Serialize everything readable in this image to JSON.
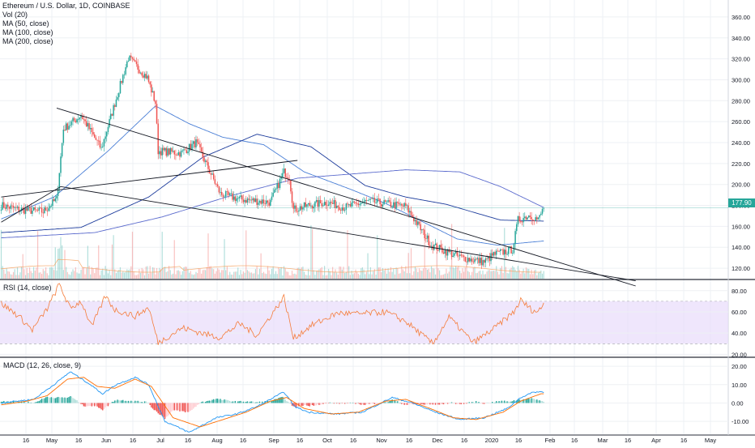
{
  "header": {
    "title": "Ethereum / U.S. Dollar, 1D, COINBASE",
    "indicators": [
      "Vol (20)",
      "MA (50, close)",
      "MA (100, close)",
      "MA (200, close)"
    ]
  },
  "panels": {
    "rsi_label": "RSI (14, close)",
    "macd_label": "MACD (12, 26, close, 9)"
  },
  "last_price_label": "177.90",
  "colors": {
    "up": "#26a69a",
    "down": "#ef5350",
    "ma50": "#4a7fd6",
    "ma100": "#1d3c9c",
    "ma200": "#5a6acd",
    "rsi_line": "#f57c3a",
    "rsi_band": "#e8dcfb",
    "macd_line": "#2196f3",
    "signal_line": "#ff6d00",
    "trendline": "#131722"
  },
  "chart_data": [
    {
      "type": "candlestick",
      "title": "Ethereum / U.S. Dollar, 1D, COINBASE",
      "x_axis_labels": [
        "16",
        "May",
        "16",
        "Jun",
        "16",
        "Jul",
        "16",
        "Aug",
        "16",
        "Sep",
        "16",
        "Oct",
        "16",
        "Nov",
        "16",
        "Dec",
        "16",
        "2020",
        "16",
        "Feb",
        "16",
        "Mar",
        "16",
        "Apr",
        "16",
        "May"
      ],
      "y_ticks": [
        "360.00",
        "340.00",
        "320.00",
        "300.00",
        "280.00",
        "260.00",
        "240.00",
        "220.00",
        "200.00",
        "180.00",
        "160.00",
        "140.00",
        "120.00"
      ],
      "ylim": [
        110,
        370
      ],
      "last_price": 177.9,
      "close_anchors": [
        [
          1,
          180
        ],
        [
          14,
          176
        ],
        [
          32,
          174
        ],
        [
          42,
          186
        ],
        [
          47,
          253
        ],
        [
          60,
          266
        ],
        [
          75,
          234
        ],
        [
          95,
          321
        ],
        [
          109,
          302
        ],
        [
          115,
          278
        ],
        [
          117,
          232
        ],
        [
          134,
          230
        ],
        [
          145,
          240
        ],
        [
          163,
          191
        ],
        [
          177,
          186
        ],
        [
          200,
          183
        ],
        [
          210,
          212
        ],
        [
          214,
          207
        ],
        [
          217,
          176
        ],
        [
          228,
          180
        ],
        [
          242,
          183
        ],
        [
          255,
          178
        ],
        [
          272,
          184
        ],
        [
          300,
          179
        ],
        [
          319,
          142
        ],
        [
          339,
          131
        ],
        [
          350,
          128
        ],
        [
          358,
          126
        ],
        [
          365,
          133
        ],
        [
          379,
          138
        ],
        [
          383,
          166
        ],
        [
          392,
          171
        ],
        [
          398,
          166
        ],
        [
          402,
          178
        ]
      ],
      "moving_averages": [
        {
          "name": "MA (50, close)",
          "points": [
            [
              1,
              167
            ],
            [
              40,
              188
            ],
            [
              80,
              232
            ],
            [
              115,
              275
            ],
            [
              140,
              258
            ],
            [
              165,
              245
            ],
            [
              195,
              238
            ],
            [
              225,
              212
            ],
            [
              260,
              195
            ],
            [
              285,
              182
            ],
            [
              310,
              166
            ],
            [
              338,
              148
            ],
            [
              368,
              142
            ],
            [
              402,
              146
            ]
          ]
        },
        {
          "name": "MA (100, close)",
          "points": [
            [
              1,
              154
            ],
            [
              60,
              159
            ],
            [
              110,
              188
            ],
            [
              150,
              226
            ],
            [
              190,
              248
            ],
            [
              230,
              236
            ],
            [
              270,
              199
            ],
            [
              300,
              188
            ],
            [
              330,
              181
            ],
            [
              370,
              166
            ],
            [
              402,
              165
            ]
          ]
        },
        {
          "name": "MA (200, close)",
          "points": [
            [
              1,
              149
            ],
            [
              70,
              154
            ],
            [
              120,
              169
            ],
            [
              170,
              189
            ],
            [
              220,
              206
            ],
            [
              260,
              210
            ],
            [
              300,
              214
            ],
            [
              340,
              212
            ],
            [
              370,
              198
            ],
            [
              402,
              178
            ]
          ]
        }
      ],
      "trendlines": [
        {
          "points": [
            [
              1,
              188
            ],
            [
              220,
              223
            ]
          ]
        },
        {
          "points": [
            [
              42,
              273
            ],
            [
              470,
              103
            ]
          ]
        },
        {
          "points": [
            [
              1,
              164
            ],
            [
              45,
              198
            ],
            [
              470,
              108
            ]
          ]
        }
      ]
    },
    {
      "type": "line",
      "title": "RSI (14, close)",
      "y_ticks": [
        "80.00",
        "60.00",
        "40.00",
        "20.00"
      ],
      "ylim": [
        18,
        89
      ],
      "bands": [
        30,
        70
      ],
      "anchors": [
        [
          1,
          68
        ],
        [
          14,
          56
        ],
        [
          24,
          43
        ],
        [
          35,
          63
        ],
        [
          44,
          86
        ],
        [
          52,
          63
        ],
        [
          60,
          70
        ],
        [
          68,
          46
        ],
        [
          78,
          75
        ],
        [
          85,
          62
        ],
        [
          100,
          56
        ],
        [
          110,
          64
        ],
        [
          117,
          31
        ],
        [
          135,
          45
        ],
        [
          152,
          39
        ],
        [
          163,
          36
        ],
        [
          177,
          49
        ],
        [
          190,
          38
        ],
        [
          210,
          74
        ],
        [
          217,
          35
        ],
        [
          230,
          47
        ],
        [
          250,
          59
        ],
        [
          265,
          58
        ],
        [
          285,
          60
        ],
        [
          300,
          51
        ],
        [
          320,
          30
        ],
        [
          332,
          55
        ],
        [
          350,
          31
        ],
        [
          365,
          44
        ],
        [
          380,
          60
        ],
        [
          385,
          71
        ],
        [
          393,
          62
        ],
        [
          398,
          60
        ],
        [
          402,
          68
        ]
      ]
    },
    {
      "type": "line",
      "title": "MACD (12, 26, close, 9)",
      "y_ticks": [
        "20.00",
        "10.00",
        "0.00",
        "-10.00"
      ],
      "ylim": [
        -17,
        24
      ],
      "macd_anchors": [
        [
          1,
          0
        ],
        [
          12,
          1
        ],
        [
          25,
          2
        ],
        [
          40,
          10
        ],
        [
          52,
          17
        ],
        [
          65,
          11
        ],
        [
          76,
          5
        ],
        [
          86,
          10
        ],
        [
          100,
          14
        ],
        [
          110,
          10
        ],
        [
          122,
          -10
        ],
        [
          140,
          -16
        ],
        [
          160,
          -8
        ],
        [
          175,
          -6
        ],
        [
          190,
          -2
        ],
        [
          210,
          6
        ],
        [
          218,
          -2
        ],
        [
          228,
          -5
        ],
        [
          248,
          -6
        ],
        [
          268,
          -5
        ],
        [
          290,
          3
        ],
        [
          305,
          0
        ],
        [
          322,
          -5
        ],
        [
          340,
          -9
        ],
        [
          358,
          -8
        ],
        [
          375,
          -3
        ],
        [
          385,
          3
        ],
        [
          395,
          6
        ],
        [
          402,
          6
        ]
      ],
      "signal_anchors": [
        [
          1,
          -1
        ],
        [
          20,
          1
        ],
        [
          35,
          4
        ],
        [
          50,
          13
        ],
        [
          62,
          14
        ],
        [
          72,
          9
        ],
        [
          85,
          8
        ],
        [
          100,
          13
        ],
        [
          112,
          9
        ],
        [
          128,
          -8
        ],
        [
          148,
          -13
        ],
        [
          165,
          -9
        ],
        [
          182,
          -5
        ],
        [
          200,
          1
        ],
        [
          212,
          3
        ],
        [
          225,
          -3
        ],
        [
          245,
          -6
        ],
        [
          265,
          -5
        ],
        [
          285,
          1
        ],
        [
          300,
          2
        ],
        [
          318,
          -3
        ],
        [
          335,
          -8
        ],
        [
          352,
          -9
        ],
        [
          372,
          -5
        ],
        [
          385,
          1
        ],
        [
          400,
          5
        ],
        [
          402,
          5
        ]
      ]
    }
  ]
}
